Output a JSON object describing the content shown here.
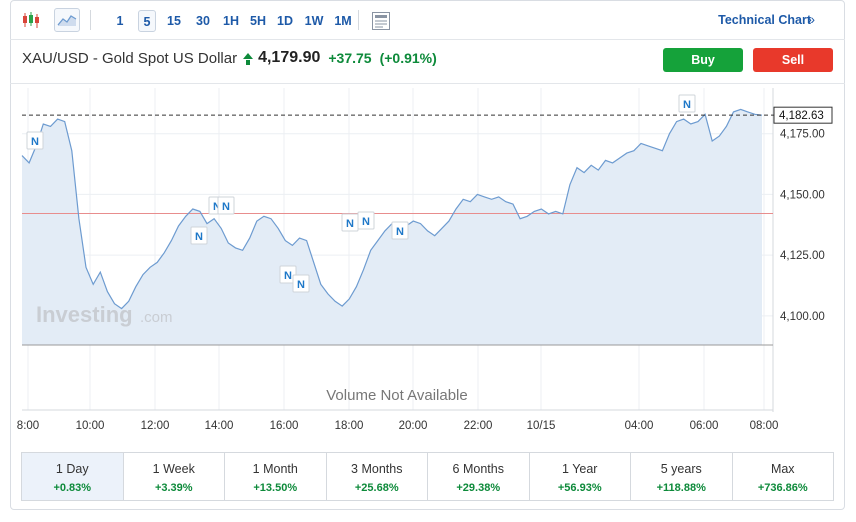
{
  "toolbar": {
    "timeframes": [
      "1",
      "5",
      "15",
      "30",
      "1H",
      "5H",
      "1D",
      "1W",
      "1M"
    ],
    "active_timeframe": "5",
    "technical_chart_label": "Technical Chart",
    "technical_chart_arrow": "»"
  },
  "header": {
    "instrument": "XAU/USD - Gold Spot US Dollar",
    "price": "4,179.90",
    "change": "+37.75",
    "change_pct": "(+0.91%)",
    "buy_label": "Buy",
    "sell_label": "Sell"
  },
  "colors": {
    "up": "#0d8a3a",
    "line": "#6d9bd0",
    "area": "#e3ecf6",
    "buy": "#15a23a",
    "sell": "#e8392b",
    "ref_line": "#e88d8d"
  },
  "chart_data": {
    "type": "area",
    "x_ticks": [
      "8:00",
      "10:00",
      "12:00",
      "14:00",
      "16:00",
      "18:00",
      "20:00",
      "22:00",
      "10/15",
      "04:00",
      "06:00",
      "08:00"
    ],
    "y_ticks": [
      4100.0,
      4125.0,
      4150.0,
      4175.0
    ],
    "y_tick_labels": [
      "4,100.00",
      "4,125.00",
      "4,150.00",
      "4,175.00"
    ],
    "ylim": [
      4088,
      4193
    ],
    "last_price": 4182.63,
    "last_price_label": "4,182.63",
    "previous_close": 4142.15,
    "watermark": "Investing",
    "watermark_suffix": ".com",
    "volume_note": "Volume Not Available",
    "news_marker": "N",
    "series": [
      {
        "values": [
          4166,
          4163,
          4170,
          4179,
          4178,
          4181,
          4180,
          4168,
          4140,
          4120,
          4113,
          4118,
          4110,
          4105,
          4103,
          4106,
          4112,
          4117,
          4120,
          4122,
          4126,
          4131,
          4137,
          4141,
          4144,
          4143,
          4138,
          4140,
          4136,
          4130,
          4128,
          4127,
          4132,
          4139,
          4141,
          4140,
          4136,
          4131,
          4129,
          4132,
          4131,
          4122,
          4113,
          4109,
          4106,
          4104,
          4107,
          4112,
          4119,
          4127,
          4131,
          4135,
          4138,
          4136,
          4137,
          4139,
          4138,
          4135,
          4133,
          4136,
          4139,
          4144,
          4148,
          4147,
          4150,
          4149,
          4148,
          4149,
          4147,
          4146,
          4140,
          4141,
          4143,
          4144,
          4142,
          4143,
          4142,
          4154,
          4161,
          4159,
          4162,
          4160,
          4164,
          4163,
          4165,
          4167,
          4168,
          4171,
          4170,
          4169,
          4168,
          4175,
          4180,
          4181,
          4179,
          4180,
          4183,
          4172,
          4174,
          4178,
          4184,
          4185,
          4184,
          4183,
          4182.63
        ]
      }
    ]
  },
  "periods": [
    {
      "label": "1 Day",
      "value": "+0.83%"
    },
    {
      "label": "1 Week",
      "value": "+3.39%"
    },
    {
      "label": "1 Month",
      "value": "+13.50%"
    },
    {
      "label": "3 Months",
      "value": "+25.68%"
    },
    {
      "label": "6 Months",
      "value": "+29.38%"
    },
    {
      "label": "1 Year",
      "value": "+56.93%"
    },
    {
      "label": "5 years",
      "value": "+118.88%"
    },
    {
      "label": "Max",
      "value": "+736.86%"
    }
  ],
  "active_period": "1 Day"
}
